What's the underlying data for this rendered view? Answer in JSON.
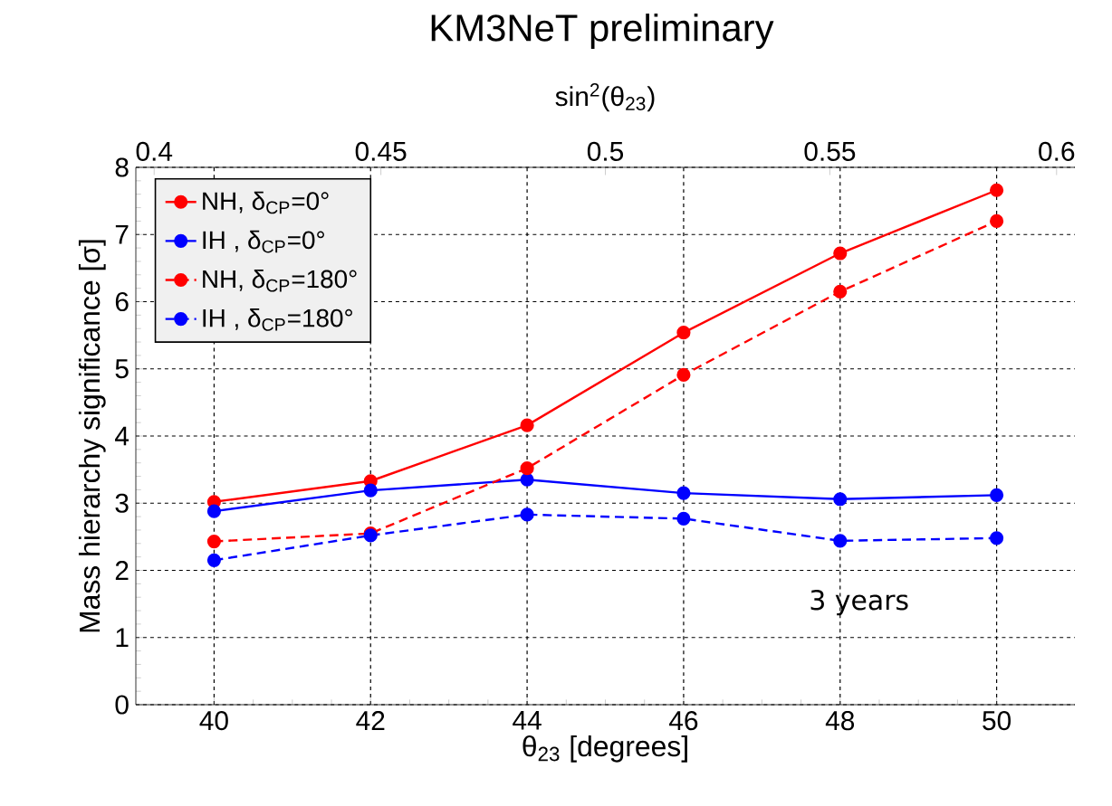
{
  "chart_data": {
    "type": "line",
    "title": "KM3NeT preliminary",
    "xlabel": "θ$_{23}$ [degrees]",
    "ylabel": "Mass hierarchy significance [σ]",
    "x2label": "sin$^{2}$(θ$_{23}$)",
    "x": [
      40,
      42,
      44,
      46,
      48,
      50
    ],
    "series": [
      {
        "name": "NH, δ$_{CP}$=0°",
        "color": "#ff0000",
        "line_style": "solid",
        "values": [
          3.02,
          3.33,
          4.16,
          5.54,
          6.72,
          7.66
        ]
      },
      {
        "name": "IH  , δ$_{CP}$=0°",
        "color": "#0000ff",
        "line_style": "solid",
        "values": [
          2.88,
          3.19,
          3.35,
          3.15,
          3.06,
          3.12
        ]
      },
      {
        "name": "NH, δ$_{CP}$=180°",
        "color": "#ff0000",
        "line_style": "dashed",
        "values": [
          2.43,
          2.55,
          3.52,
          4.91,
          6.15,
          7.2
        ]
      },
      {
        "name": "IH  , δ$_{CP}$=180°",
        "color": "#0000ff",
        "line_style": "dashed",
        "values": [
          2.15,
          2.52,
          2.83,
          2.77,
          2.44,
          2.48
        ]
      }
    ],
    "xlim": [
      39,
      51
    ],
    "xticks": [
      40,
      42,
      44,
      46,
      48,
      50
    ],
    "ylim": [
      0,
      8
    ],
    "yticks": [
      0,
      1,
      2,
      3,
      4,
      5,
      6,
      7,
      8
    ],
    "x2lim": [
      0.396,
      0.604
    ],
    "x2ticks": [
      0.4,
      0.45,
      0.5,
      0.55,
      0.6
    ],
    "grid": true,
    "legend": "top left",
    "marker": "circle",
    "annotations": [
      "3 years"
    ]
  }
}
